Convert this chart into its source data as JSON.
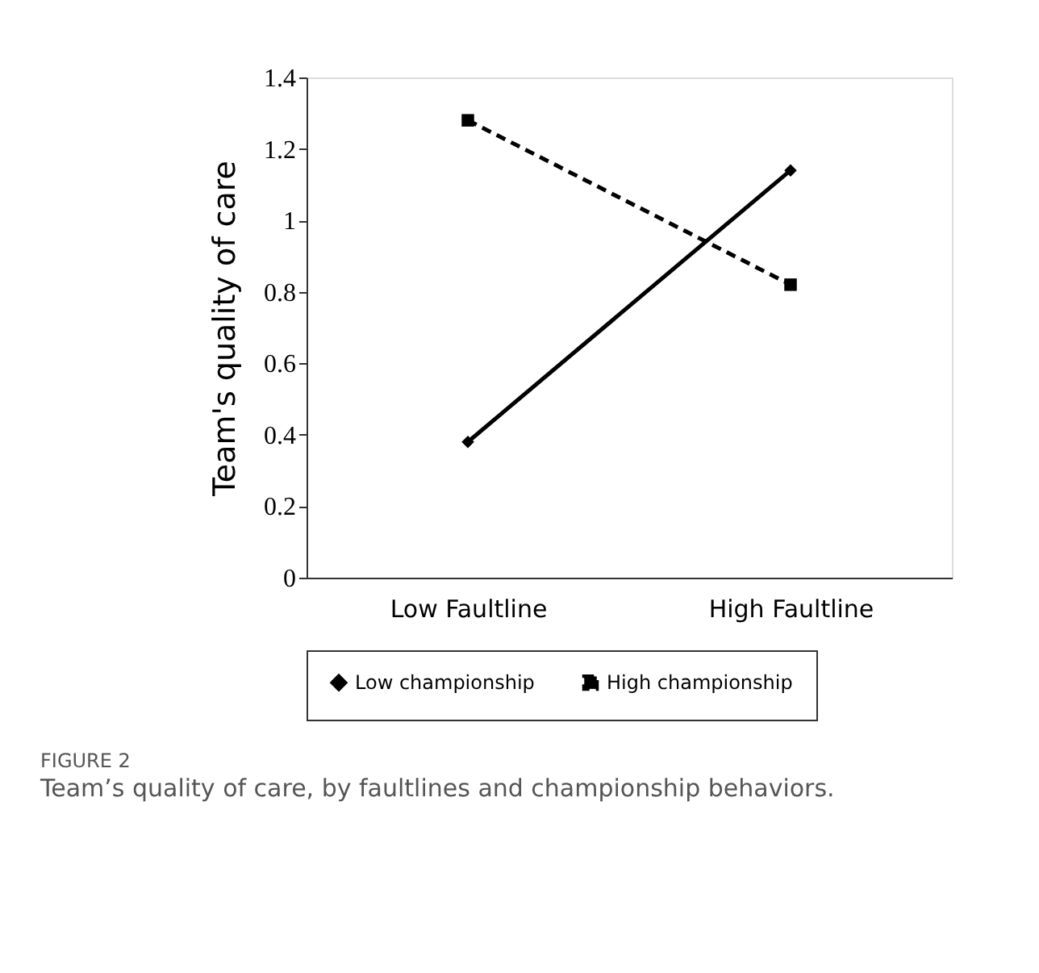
{
  "chart_data": {
    "type": "line",
    "ylabel": "Team's quality of care",
    "categories": [
      "Low Faultline",
      "High Faultline"
    ],
    "series": [
      {
        "name": "Low championship",
        "color": "#000000",
        "values": [
          0.38,
          1.14
        ],
        "marker": "diamond",
        "line_style": "solid"
      },
      {
        "name": "High championship",
        "color": "#000000",
        "values": [
          1.28,
          0.82
        ],
        "marker": "square",
        "line_style": "dashed"
      }
    ],
    "ylim": [
      0,
      1.4
    ],
    "yticks": [
      0,
      0.2,
      0.4,
      0.6,
      0.8,
      1,
      1.2,
      1.4
    ],
    "grid": false,
    "legend": "bottom",
    "annotations": [
      "FIGURE 2",
      "Team’s quality of care, by faultlines and championship behaviors."
    ]
  }
}
